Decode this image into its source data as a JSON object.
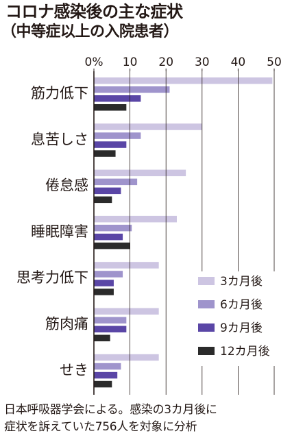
{
  "title": "コロナ感染後の主な症状",
  "subtitle": "（中等症以上の入院患者）",
  "note_lines": [
    "日本呼吸器学会による。感染の3カ月後に",
    "症状を訴えていた756人を対象に分析"
  ],
  "chart_data": {
    "type": "bar",
    "orientation": "horizontal",
    "title": "コロナ感染後の主な症状",
    "subtitle": "（中等症以上の入院患者）",
    "categories": [
      "筋力低下",
      "息苦しさ",
      "倦怠感",
      "睡眠障害",
      "思考力低下",
      "筋肉痛",
      "せき"
    ],
    "series": [
      {
        "name": "3カ月後",
        "color": "#cdc5e2",
        "values": [
          49.5,
          30,
          25.5,
          23,
          18,
          18,
          18
        ]
      },
      {
        "name": "6カ月後",
        "color": "#9f94cc",
        "values": [
          21,
          13,
          12,
          10.5,
          8,
          9,
          7.5
        ]
      },
      {
        "name": "9カ月後",
        "color": "#5a46a6",
        "values": [
          13,
          9,
          7.5,
          8,
          5.5,
          9,
          6.5
        ]
      },
      {
        "name": "12カ月後",
        "color": "#2b2b2b",
        "values": [
          9,
          6,
          5,
          10,
          5.5,
          4.5,
          5
        ]
      }
    ],
    "xlim": [
      0,
      50
    ],
    "xticks": [
      0,
      10,
      20,
      30,
      40,
      50
    ],
    "xtick_labels": [
      "0%",
      "10",
      "20",
      "30",
      "40",
      "50"
    ],
    "grid": true,
    "legend_position": "bottom-right"
  }
}
